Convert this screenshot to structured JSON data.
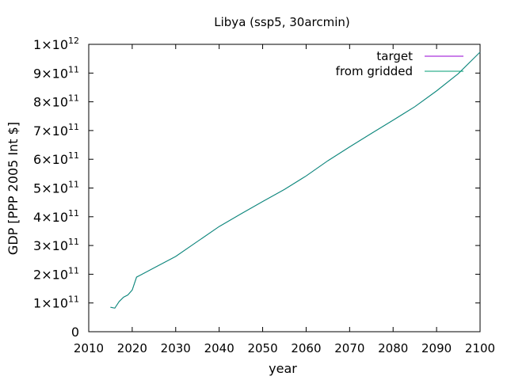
{
  "chart_data": {
    "type": "line",
    "title": "Libya (ssp5, 30arcmin)",
    "xlabel": "year",
    "ylabel": "GDP [PPP 2005 Int $]",
    "xlim": [
      2010,
      2100
    ],
    "ylim": [
      0,
      1000000000000
    ],
    "grid": false,
    "legend_position": "top-right",
    "x_ticks": [
      {
        "value": 2010,
        "label": "2010"
      },
      {
        "value": 2020,
        "label": "2020"
      },
      {
        "value": 2030,
        "label": "2030"
      },
      {
        "value": 2040,
        "label": "2040"
      },
      {
        "value": 2050,
        "label": "2050"
      },
      {
        "value": 2060,
        "label": "2060"
      },
      {
        "value": 2070,
        "label": "2070"
      },
      {
        "value": 2080,
        "label": "2080"
      },
      {
        "value": 2090,
        "label": "2090"
      },
      {
        "value": 2100,
        "label": "2100"
      }
    ],
    "y_ticks": [
      {
        "value": 0,
        "mantissa": "0",
        "exponent": ""
      },
      {
        "value": 100000000000,
        "mantissa": "1×10",
        "exponent": "11"
      },
      {
        "value": 200000000000,
        "mantissa": "2×10",
        "exponent": "11"
      },
      {
        "value": 300000000000,
        "mantissa": "3×10",
        "exponent": "11"
      },
      {
        "value": 400000000000,
        "mantissa": "4×10",
        "exponent": "11"
      },
      {
        "value": 500000000000,
        "mantissa": "5×10",
        "exponent": "11"
      },
      {
        "value": 600000000000,
        "mantissa": "6×10",
        "exponent": "11"
      },
      {
        "value": 700000000000,
        "mantissa": "7×10",
        "exponent": "11"
      },
      {
        "value": 800000000000,
        "mantissa": "8×10",
        "exponent": "11"
      },
      {
        "value": 900000000000,
        "mantissa": "9×10",
        "exponent": "11"
      },
      {
        "value": 1000000000000,
        "mantissa": "1×10",
        "exponent": "12"
      }
    ],
    "x": [
      2015,
      2016,
      2017,
      2018,
      2019,
      2020,
      2021,
      2022,
      2025,
      2030,
      2035,
      2040,
      2045,
      2050,
      2055,
      2060,
      2065,
      2070,
      2075,
      2080,
      2085,
      2090,
      2095,
      2100
    ],
    "series": [
      {
        "name": "target",
        "color": "#9400d3",
        "values": [
          85000000000.0,
          82000000000.0,
          105000000000.0,
          120000000000.0,
          128000000000.0,
          145000000000.0,
          190000000000.0,
          198000000000.0,
          222000000000.0,
          262000000000.0,
          314000000000.0,
          366000000000.0,
          410000000000.0,
          453000000000.0,
          495000000000.0,
          542000000000.0,
          595000000000.0,
          643000000000.0,
          690000000000.0,
          736000000000.0,
          783000000000.0,
          838000000000.0,
          898000000000.0,
          973000000000.0
        ]
      },
      {
        "name": "from gridded",
        "color": "#009e73",
        "values": [
          85000000000.0,
          82000000000.0,
          105000000000.0,
          120000000000.0,
          128000000000.0,
          145000000000.0,
          190000000000.0,
          198000000000.0,
          222000000000.0,
          262000000000.0,
          314000000000.0,
          366000000000.0,
          410000000000.0,
          453000000000.0,
          495000000000.0,
          542000000000.0,
          595000000000.0,
          643000000000.0,
          690000000000.0,
          736000000000.0,
          783000000000.0,
          838000000000.0,
          898000000000.0,
          973000000000.0
        ]
      }
    ]
  }
}
